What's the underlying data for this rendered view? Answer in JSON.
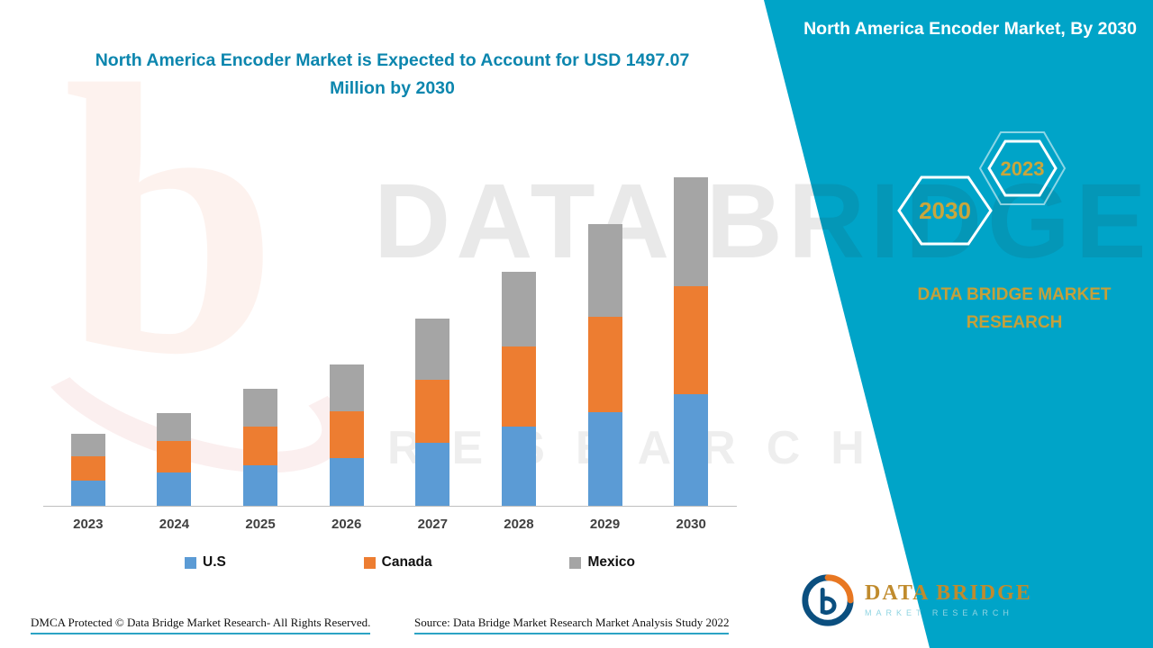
{
  "header": {
    "main_title_line1": "North America Encoder Market is Expected to Account for USD 1497.07",
    "main_title_line2": "Million by 2030",
    "panel_title": "North America Encoder Market, By 2030"
  },
  "chart_data": {
    "type": "bar",
    "stacked": true,
    "title": "North America Encoder Market is Expected to Account for USD 1497.07 Million by 2030",
    "unit": "USD Million",
    "xlabel": "",
    "ylabel": "",
    "grid": false,
    "legend_position": "bottom",
    "ylim": [
      0,
      1500
    ],
    "categories": [
      "2023",
      "2024",
      "2025",
      "2026",
      "2027",
      "2028",
      "2029",
      "2030"
    ],
    "series": [
      {
        "name": "U.S",
        "color": "#5b9bd5",
        "values": [
          116,
          153,
          186,
          219,
          289,
          360,
          426,
          509
        ]
      },
      {
        "name": "Canada",
        "color": "#ed7d31",
        "values": [
          112,
          145,
          178,
          215,
          289,
          364,
          434,
          492
        ]
      },
      {
        "name": "Mexico",
        "color": "#a5a5a5",
        "values": [
          103,
          128,
          174,
          215,
          281,
          343,
          422,
          496
        ]
      }
    ],
    "totals": [
      331,
      426,
      538,
      649,
      859,
      1067,
      1282,
      1497.07
    ]
  },
  "badges": {
    "hex_front": "2030",
    "hex_back": "2023"
  },
  "panel": {
    "brand_text": "DATA BRIDGE MARKET RESEARCH"
  },
  "watermark": {
    "line1": "DATA BRIDGE",
    "line2": "RESEARCH",
    "letter_b": "b"
  },
  "footer": {
    "dmca": "DMCA Protected © Data Bridge Market Research- All Rights Reserved.",
    "source": "Source: Data Bridge Market Research Market Analysis Study 2022"
  },
  "logo": {
    "name": "DATA BRIDGE",
    "subtitle": "MARKET RESEARCH"
  },
  "colors": {
    "panel_teal": "#00a4c8",
    "title_teal": "#0c86ae",
    "gold": "#c9a63c",
    "us_blue": "#5b9bd5",
    "canada_orange": "#ed7d31",
    "mexico_gray": "#a5a5a5"
  }
}
